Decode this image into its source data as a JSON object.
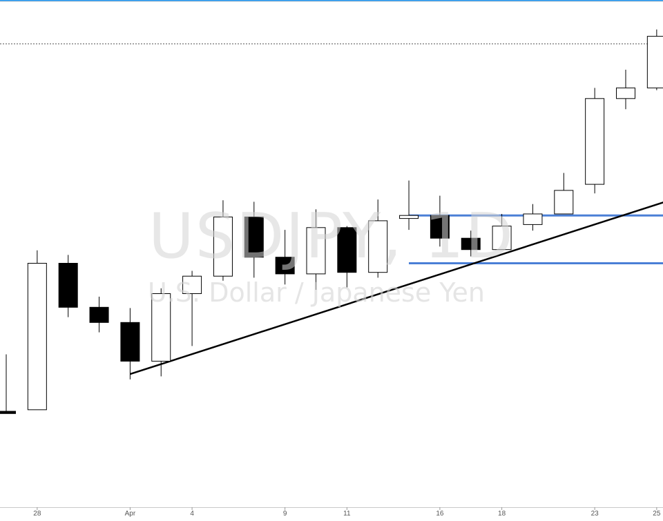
{
  "chart_data": {
    "type": "candlestick",
    "symbol": "USDJPY, 1D",
    "description": "U.S. Dollar / Japanese Yen",
    "x_tick_labels": [
      "28",
      "Apr",
      "4",
      "9",
      "11",
      "16",
      "18",
      "23",
      "25"
    ],
    "candles": [
      {
        "open": 0.0,
        "high": 7.5,
        "low": -0.3,
        "close": -0.3
      },
      {
        "open": 0.2,
        "high": 21.2,
        "low": 0.2,
        "close": 19.5
      },
      {
        "open": 19.5,
        "high": 20.6,
        "low": 12.4,
        "close": 13.7
      },
      {
        "open": 13.7,
        "high": 15.1,
        "low": 10.4,
        "close": 11.7
      },
      {
        "open": 11.7,
        "high": 13.6,
        "low": 4.2,
        "close": 6.6
      },
      {
        "open": 6.6,
        "high": 16.2,
        "low": 4.6,
        "close": 15.5
      },
      {
        "open": 15.5,
        "high": 18.5,
        "low": 8.6,
        "close": 17.8
      },
      {
        "open": 17.8,
        "high": 27.8,
        "low": 17.2,
        "close": 25.6
      },
      {
        "open": 25.6,
        "high": 27.6,
        "low": 17.6,
        "close": 20.3
      },
      {
        "open": 20.3,
        "high": 23.9,
        "low": 16.7,
        "close": 18.1
      },
      {
        "open": 18.1,
        "high": 26.6,
        "low": 16.0,
        "close": 24.2
      },
      {
        "open": 24.2,
        "high": 24.4,
        "low": 16.3,
        "close": 18.3
      },
      {
        "open": 18.3,
        "high": 27.9,
        "low": 17.6,
        "close": 25.1
      },
      {
        "open": 25.4,
        "high": 30.4,
        "low": 23.9,
        "close": 25.8
      },
      {
        "open": 25.8,
        "high": 28.4,
        "low": 21.7,
        "close": 22.8
      },
      {
        "open": 22.8,
        "high": 23.8,
        "low": 20.4,
        "close": 21.3
      },
      {
        "open": 21.3,
        "high": 26.0,
        "low": 21.3,
        "close": 24.4
      },
      {
        "open": 24.6,
        "high": 27.3,
        "low": 23.8,
        "close": 26.0
      },
      {
        "open": 26.0,
        "high": 31.4,
        "low": 26.0,
        "close": 29.1
      },
      {
        "open": 29.9,
        "high": 42.6,
        "low": 28.7,
        "close": 41.2
      },
      {
        "open": 41.2,
        "high": 45.0,
        "low": 39.8,
        "close": 42.6
      },
      {
        "open": 42.6,
        "high": 50.3,
        "low": 42.3,
        "close": 49.4
      }
    ],
    "trendline": {
      "from": [
        4,
        4.9
      ],
      "to": [
        21.5,
        27.9
      ]
    },
    "support_lines": [
      25.8,
      19.5
    ],
    "reference_line": 48.4,
    "grid": false
  },
  "colors": {
    "top_bar": "#2196f3",
    "candle_up_fill": "#ffffff",
    "candle_down_fill": "#000000",
    "candle_border": "#000000",
    "support_line": "#4a7fd6",
    "trendline": "#000000",
    "axis_text": "#555555"
  }
}
